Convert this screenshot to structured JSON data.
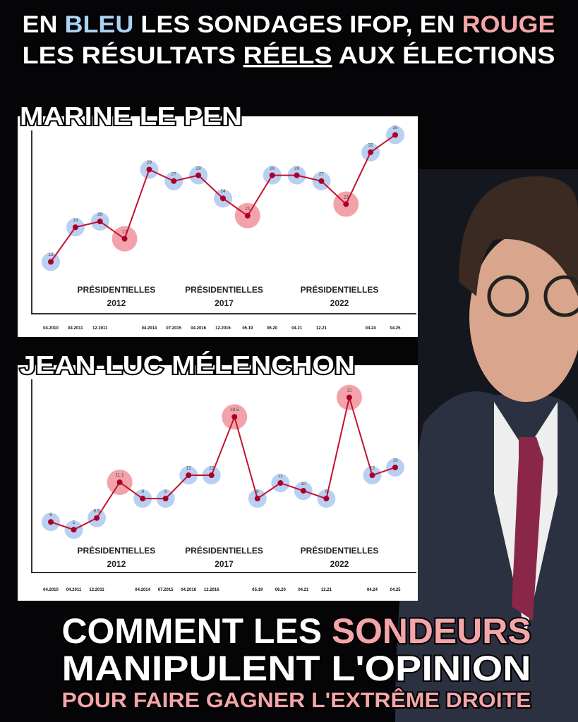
{
  "header": {
    "line1": [
      "EN ",
      "BLEU",
      " LES SONDAGES IFOP, EN ",
      "ROUGE"
    ],
    "line2": [
      "LES RÉSULTATS ",
      "RÉELS",
      " AUX ÉLECTIONS"
    ]
  },
  "chart_data": [
    {
      "type": "line",
      "title": "MARINE LE PEN",
      "categories": [
        "04.2010",
        "04.2011",
        "12.2011",
        null,
        "04.2014",
        "07.2015",
        "04.2016",
        "12.2016",
        "05.19",
        "06.20",
        "04.21",
        "12.21",
        null,
        "04.24",
        "04.25"
      ],
      "values": [
        13,
        19,
        20,
        17,
        29,
        27,
        28,
        24,
        21,
        28,
        28,
        27,
        23,
        32,
        35
      ],
      "marker_colors": [
        "#b9d0f2",
        "#b9d0f2",
        "#b9d0f2",
        "#f2a3aa",
        "#b9d0f2",
        "#b9d0f2",
        "#b9d0f2",
        "#b9d0f2",
        "#f2a3aa",
        "#b9d0f2",
        "#b9d0f2",
        "#b9d0f2",
        "#f2a3aa",
        "#b9d0f2",
        "#b9d0f2"
      ],
      "color": "#c4122f",
      "ylim": [
        4,
        37
      ],
      "annotations": [
        [
          "PRÉSIDENTIELLES",
          "2012"
        ],
        [
          "PRÉSIDENTIELLES",
          "2017"
        ],
        [
          "PRÉSIDENTIELLES",
          "2022"
        ]
      ]
    },
    {
      "type": "line",
      "title": "JEAN-LUC MÉLENCHON",
      "categories": [
        "04.2010",
        "04.2011",
        "12.2011",
        null,
        "04.2014",
        "07.2015",
        "04.2016",
        "12.2016",
        null,
        "05.19",
        "06.20",
        "04.21",
        "12.21",
        null,
        "04.24",
        "04.25"
      ],
      "values": [
        6,
        5,
        6.5,
        11.1,
        9,
        9,
        12,
        12,
        19.5,
        9,
        11,
        10,
        9,
        22,
        12,
        13
      ],
      "marker_colors": [
        "#b9d0f2",
        "#b9d0f2",
        "#b9d0f2",
        "#f2a3aa",
        "#b9d0f2",
        "#b9d0f2",
        "#b9d0f2",
        "#b9d0f2",
        "#f2a3aa",
        "#b9d0f2",
        "#b9d0f2",
        "#b9d0f2",
        "#b9d0f2",
        "#f2a3aa",
        "#b9d0f2",
        "#b9d0f2"
      ],
      "color": "#c4122f",
      "ylim": [
        -0.5,
        25.5
      ],
      "annotations": [
        [
          "PRÉSIDENTIELLES",
          "2012"
        ],
        [
          "PRÉSIDENTIELLES",
          "2017"
        ],
        [
          "PRÉSIDENTIELLES",
          "2022"
        ]
      ]
    }
  ],
  "footer": {
    "line1": [
      "COMMENT LES ",
      "SONDEURS"
    ],
    "line2": "MANIPULENT L'OPINION",
    "line3": "POUR FAIRE GAGNER L'EXTRÊME DROITE"
  }
}
